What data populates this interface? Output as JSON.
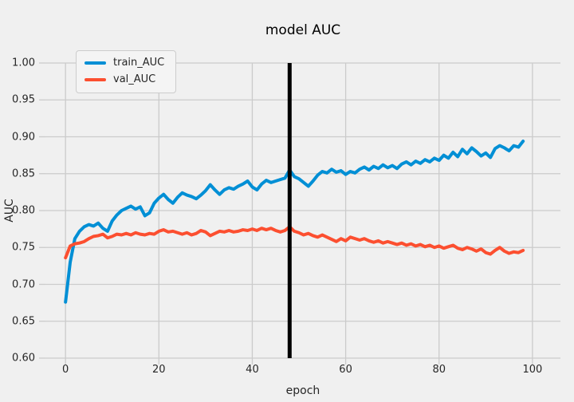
{
  "figure": {
    "background_color": "#f0f0f0",
    "grid_color": "#cbcbcb",
    "text_color": "#262626",
    "vline_color": "#000000"
  },
  "chart_data": {
    "type": "line",
    "title": "model AUC",
    "xlabel": "epoch",
    "ylabel": "AUC",
    "xlim": [
      -4.3,
      106.0
    ],
    "ylim": [
      0.6,
      1.0
    ],
    "xticks": [
      0,
      20,
      40,
      60,
      80,
      100
    ],
    "yticks": [
      0.6,
      0.65,
      0.7,
      0.75,
      0.8,
      0.85,
      0.9,
      0.95,
      1.0
    ],
    "grid": true,
    "legend_position": "upper-left",
    "vline": {
      "x": 48,
      "color": "#000000"
    },
    "x": [
      0,
      1,
      2,
      3,
      4,
      5,
      6,
      7,
      8,
      9,
      10,
      11,
      12,
      13,
      14,
      15,
      16,
      17,
      18,
      19,
      20,
      21,
      22,
      23,
      24,
      25,
      26,
      27,
      28,
      29,
      30,
      31,
      32,
      33,
      34,
      35,
      36,
      37,
      38,
      39,
      40,
      41,
      42,
      43,
      44,
      45,
      46,
      47,
      48,
      49,
      50,
      51,
      52,
      53,
      54,
      55,
      56,
      57,
      58,
      59,
      60,
      61,
      62,
      63,
      64,
      65,
      66,
      67,
      68,
      69,
      70,
      71,
      72,
      73,
      74,
      75,
      76,
      77,
      78,
      79,
      80,
      81,
      82,
      83,
      84,
      85,
      86,
      87,
      88,
      89,
      90,
      91,
      92,
      93,
      94,
      95,
      96,
      97,
      98
    ],
    "series": [
      {
        "name": "train_AUC",
        "color": "#008fd5",
        "values": [
          0.676,
          0.73,
          0.762,
          0.772,
          0.778,
          0.781,
          0.779,
          0.783,
          0.776,
          0.772,
          0.786,
          0.794,
          0.8,
          0.803,
          0.806,
          0.802,
          0.805,
          0.793,
          0.797,
          0.81,
          0.817,
          0.822,
          0.815,
          0.81,
          0.818,
          0.824,
          0.821,
          0.819,
          0.816,
          0.821,
          0.827,
          0.835,
          0.828,
          0.822,
          0.828,
          0.831,
          0.829,
          0.833,
          0.836,
          0.84,
          0.832,
          0.828,
          0.836,
          0.841,
          0.838,
          0.84,
          0.842,
          0.844,
          0.855,
          0.846,
          0.843,
          0.838,
          0.833,
          0.84,
          0.848,
          0.853,
          0.851,
          0.856,
          0.852,
          0.854,
          0.849,
          0.853,
          0.851,
          0.856,
          0.859,
          0.855,
          0.86,
          0.857,
          0.862,
          0.858,
          0.861,
          0.857,
          0.863,
          0.866,
          0.862,
          0.867,
          0.864,
          0.869,
          0.866,
          0.871,
          0.868,
          0.875,
          0.871,
          0.879,
          0.873,
          0.883,
          0.877,
          0.885,
          0.88,
          0.874,
          0.878,
          0.872,
          0.884,
          0.888,
          0.885,
          0.881,
          0.888,
          0.886,
          0.894
        ]
      },
      {
        "name": "val_AUC",
        "color": "#fc4f30",
        "values": [
          0.736,
          0.752,
          0.755,
          0.756,
          0.758,
          0.762,
          0.765,
          0.766,
          0.768,
          0.763,
          0.765,
          0.768,
          0.767,
          0.769,
          0.767,
          0.77,
          0.768,
          0.767,
          0.769,
          0.768,
          0.772,
          0.774,
          0.771,
          0.772,
          0.77,
          0.768,
          0.77,
          0.767,
          0.769,
          0.773,
          0.771,
          0.766,
          0.769,
          0.772,
          0.771,
          0.773,
          0.771,
          0.772,
          0.774,
          0.773,
          0.775,
          0.773,
          0.776,
          0.774,
          0.776,
          0.773,
          0.771,
          0.773,
          0.778,
          0.772,
          0.77,
          0.767,
          0.769,
          0.766,
          0.764,
          0.767,
          0.764,
          0.761,
          0.758,
          0.762,
          0.759,
          0.764,
          0.762,
          0.76,
          0.762,
          0.759,
          0.757,
          0.759,
          0.756,
          0.758,
          0.756,
          0.754,
          0.756,
          0.753,
          0.755,
          0.752,
          0.754,
          0.751,
          0.753,
          0.75,
          0.752,
          0.749,
          0.751,
          0.753,
          0.749,
          0.747,
          0.75,
          0.748,
          0.745,
          0.748,
          0.743,
          0.741,
          0.746,
          0.75,
          0.745,
          0.742,
          0.744,
          0.743,
          0.746
        ]
      }
    ]
  }
}
